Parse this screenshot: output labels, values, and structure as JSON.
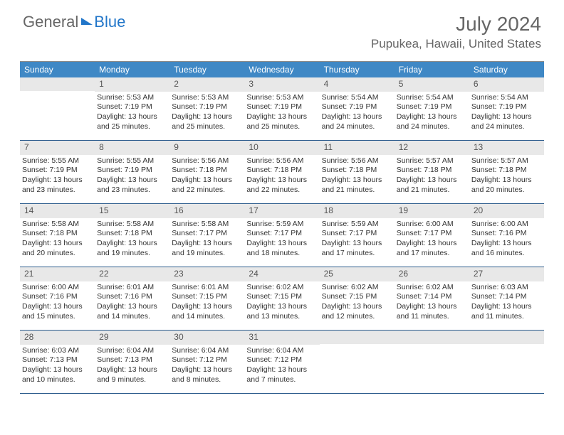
{
  "brand": {
    "part1": "General",
    "part2": "Blue"
  },
  "title": "July 2024",
  "location": "Pupukea, Hawaii, United States",
  "colors": {
    "header_bg": "#3f88c5",
    "daynum_bg": "#e8e8e8",
    "border": "#2a5a8c",
    "brand_blue": "#2276c9",
    "text_muted": "#666"
  },
  "dow": [
    "Sunday",
    "Monday",
    "Tuesday",
    "Wednesday",
    "Thursday",
    "Friday",
    "Saturday"
  ],
  "weeks": [
    [
      {
        "n": "",
        "sr": "",
        "ss": "",
        "dl": ""
      },
      {
        "n": "1",
        "sr": "Sunrise: 5:53 AM",
        "ss": "Sunset: 7:19 PM",
        "dl": "Daylight: 13 hours and 25 minutes."
      },
      {
        "n": "2",
        "sr": "Sunrise: 5:53 AM",
        "ss": "Sunset: 7:19 PM",
        "dl": "Daylight: 13 hours and 25 minutes."
      },
      {
        "n": "3",
        "sr": "Sunrise: 5:53 AM",
        "ss": "Sunset: 7:19 PM",
        "dl": "Daylight: 13 hours and 25 minutes."
      },
      {
        "n": "4",
        "sr": "Sunrise: 5:54 AM",
        "ss": "Sunset: 7:19 PM",
        "dl": "Daylight: 13 hours and 24 minutes."
      },
      {
        "n": "5",
        "sr": "Sunrise: 5:54 AM",
        "ss": "Sunset: 7:19 PM",
        "dl": "Daylight: 13 hours and 24 minutes."
      },
      {
        "n": "6",
        "sr": "Sunrise: 5:54 AM",
        "ss": "Sunset: 7:19 PM",
        "dl": "Daylight: 13 hours and 24 minutes."
      }
    ],
    [
      {
        "n": "7",
        "sr": "Sunrise: 5:55 AM",
        "ss": "Sunset: 7:19 PM",
        "dl": "Daylight: 13 hours and 23 minutes."
      },
      {
        "n": "8",
        "sr": "Sunrise: 5:55 AM",
        "ss": "Sunset: 7:19 PM",
        "dl": "Daylight: 13 hours and 23 minutes."
      },
      {
        "n": "9",
        "sr": "Sunrise: 5:56 AM",
        "ss": "Sunset: 7:18 PM",
        "dl": "Daylight: 13 hours and 22 minutes."
      },
      {
        "n": "10",
        "sr": "Sunrise: 5:56 AM",
        "ss": "Sunset: 7:18 PM",
        "dl": "Daylight: 13 hours and 22 minutes."
      },
      {
        "n": "11",
        "sr": "Sunrise: 5:56 AM",
        "ss": "Sunset: 7:18 PM",
        "dl": "Daylight: 13 hours and 21 minutes."
      },
      {
        "n": "12",
        "sr": "Sunrise: 5:57 AM",
        "ss": "Sunset: 7:18 PM",
        "dl": "Daylight: 13 hours and 21 minutes."
      },
      {
        "n": "13",
        "sr": "Sunrise: 5:57 AM",
        "ss": "Sunset: 7:18 PM",
        "dl": "Daylight: 13 hours and 20 minutes."
      }
    ],
    [
      {
        "n": "14",
        "sr": "Sunrise: 5:58 AM",
        "ss": "Sunset: 7:18 PM",
        "dl": "Daylight: 13 hours and 20 minutes."
      },
      {
        "n": "15",
        "sr": "Sunrise: 5:58 AM",
        "ss": "Sunset: 7:18 PM",
        "dl": "Daylight: 13 hours and 19 minutes."
      },
      {
        "n": "16",
        "sr": "Sunrise: 5:58 AM",
        "ss": "Sunset: 7:17 PM",
        "dl": "Daylight: 13 hours and 19 minutes."
      },
      {
        "n": "17",
        "sr": "Sunrise: 5:59 AM",
        "ss": "Sunset: 7:17 PM",
        "dl": "Daylight: 13 hours and 18 minutes."
      },
      {
        "n": "18",
        "sr": "Sunrise: 5:59 AM",
        "ss": "Sunset: 7:17 PM",
        "dl": "Daylight: 13 hours and 17 minutes."
      },
      {
        "n": "19",
        "sr": "Sunrise: 6:00 AM",
        "ss": "Sunset: 7:17 PM",
        "dl": "Daylight: 13 hours and 17 minutes."
      },
      {
        "n": "20",
        "sr": "Sunrise: 6:00 AM",
        "ss": "Sunset: 7:16 PM",
        "dl": "Daylight: 13 hours and 16 minutes."
      }
    ],
    [
      {
        "n": "21",
        "sr": "Sunrise: 6:00 AM",
        "ss": "Sunset: 7:16 PM",
        "dl": "Daylight: 13 hours and 15 minutes."
      },
      {
        "n": "22",
        "sr": "Sunrise: 6:01 AM",
        "ss": "Sunset: 7:16 PM",
        "dl": "Daylight: 13 hours and 14 minutes."
      },
      {
        "n": "23",
        "sr": "Sunrise: 6:01 AM",
        "ss": "Sunset: 7:15 PM",
        "dl": "Daylight: 13 hours and 14 minutes."
      },
      {
        "n": "24",
        "sr": "Sunrise: 6:02 AM",
        "ss": "Sunset: 7:15 PM",
        "dl": "Daylight: 13 hours and 13 minutes."
      },
      {
        "n": "25",
        "sr": "Sunrise: 6:02 AM",
        "ss": "Sunset: 7:15 PM",
        "dl": "Daylight: 13 hours and 12 minutes."
      },
      {
        "n": "26",
        "sr": "Sunrise: 6:02 AM",
        "ss": "Sunset: 7:14 PM",
        "dl": "Daylight: 13 hours and 11 minutes."
      },
      {
        "n": "27",
        "sr": "Sunrise: 6:03 AM",
        "ss": "Sunset: 7:14 PM",
        "dl": "Daylight: 13 hours and 11 minutes."
      }
    ],
    [
      {
        "n": "28",
        "sr": "Sunrise: 6:03 AM",
        "ss": "Sunset: 7:13 PM",
        "dl": "Daylight: 13 hours and 10 minutes."
      },
      {
        "n": "29",
        "sr": "Sunrise: 6:04 AM",
        "ss": "Sunset: 7:13 PM",
        "dl": "Daylight: 13 hours and 9 minutes."
      },
      {
        "n": "30",
        "sr": "Sunrise: 6:04 AM",
        "ss": "Sunset: 7:12 PM",
        "dl": "Daylight: 13 hours and 8 minutes."
      },
      {
        "n": "31",
        "sr": "Sunrise: 6:04 AM",
        "ss": "Sunset: 7:12 PM",
        "dl": "Daylight: 13 hours and 7 minutes."
      },
      {
        "n": "",
        "sr": "",
        "ss": "",
        "dl": ""
      },
      {
        "n": "",
        "sr": "",
        "ss": "",
        "dl": ""
      },
      {
        "n": "",
        "sr": "",
        "ss": "",
        "dl": ""
      }
    ]
  ]
}
